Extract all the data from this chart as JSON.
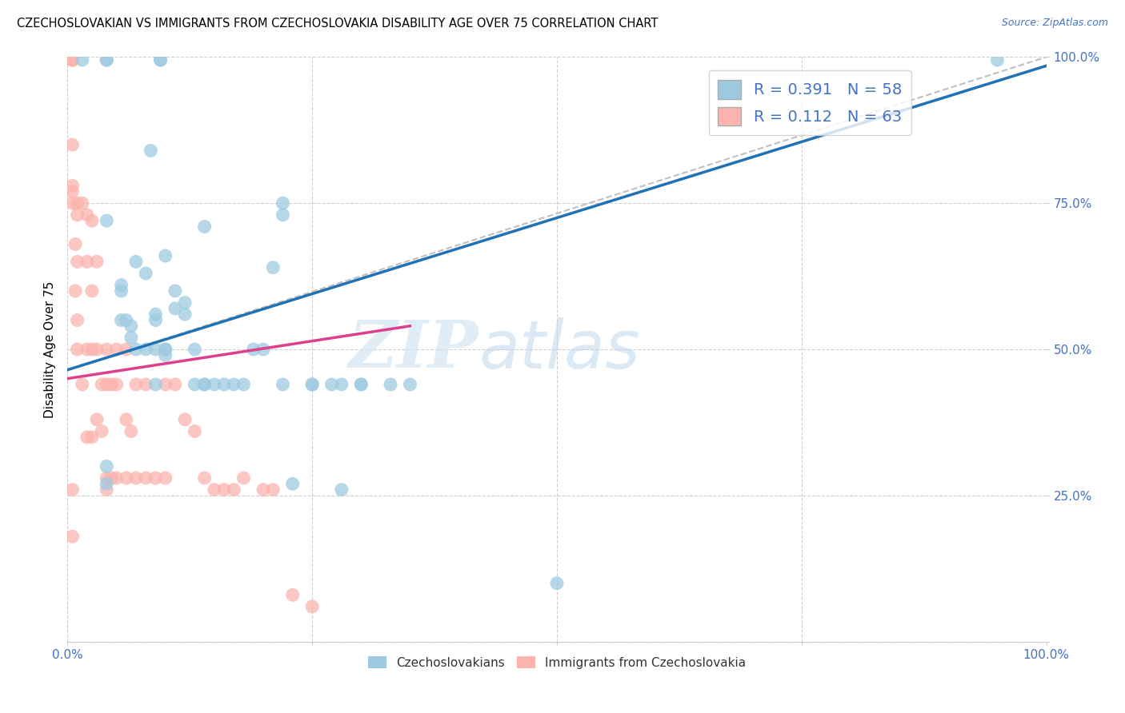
{
  "title": "CZECHOSLOVAKIAN VS IMMIGRANTS FROM CZECHOSLOVAKIA DISABILITY AGE OVER 75 CORRELATION CHART",
  "source": "Source: ZipAtlas.com",
  "ylabel": "Disability Age Over 75",
  "xlim": [
    0,
    1
  ],
  "ylim": [
    0,
    1
  ],
  "xticks": [
    0,
    0.25,
    0.5,
    0.75,
    1.0
  ],
  "yticks": [
    0,
    0.25,
    0.5,
    0.75,
    1.0
  ],
  "xticklabels": [
    "0.0%",
    "",
    "",
    "",
    "100.0%"
  ],
  "yticklabels": [
    "",
    "25.0%",
    "50.0%",
    "75.0%",
    "100.0%"
  ],
  "watermark_zip": "ZIP",
  "watermark_atlas": "atlas",
  "blue_R": 0.391,
  "blue_N": 58,
  "pink_R": 0.112,
  "pink_N": 63,
  "blue_color": "#9ecae1",
  "pink_color": "#fbb4ae",
  "blue_line_color": "#2171b5",
  "pink_line_color": "#de3f8e",
  "dashed_line_color": "#c0c0c0",
  "legend_label_blue": "Czechoslovakians",
  "legend_label_pink": "Immigrants from Czechoslovakia",
  "blue_line_x0": 0.0,
  "blue_line_y0": 0.465,
  "blue_line_x1": 1.0,
  "blue_line_y1": 0.985,
  "pink_line_x0": 0.0,
  "pink_line_y0": 0.45,
  "pink_line_x1": 0.35,
  "pink_line_y1": 0.54,
  "dash_line_x0": 0.0,
  "dash_line_y0": 0.465,
  "dash_line_x1": 1.0,
  "dash_line_y1": 1.0,
  "blue_scatter_x": [
    0.015,
    0.04,
    0.04,
    0.04,
    0.055,
    0.055,
    0.055,
    0.06,
    0.065,
    0.065,
    0.07,
    0.07,
    0.08,
    0.08,
    0.085,
    0.09,
    0.09,
    0.09,
    0.09,
    0.1,
    0.1,
    0.1,
    0.1,
    0.11,
    0.11,
    0.12,
    0.12,
    0.13,
    0.13,
    0.14,
    0.14,
    0.15,
    0.16,
    0.17,
    0.18,
    0.19,
    0.2,
    0.21,
    0.22,
    0.22,
    0.22,
    0.25,
    0.25,
    0.27,
    0.28,
    0.28,
    0.3,
    0.3,
    0.33,
    0.35,
    0.14,
    0.5,
    0.23,
    0.04,
    0.04,
    0.095,
    0.095,
    0.95
  ],
  "blue_scatter_y": [
    0.995,
    0.995,
    0.995,
    0.72,
    0.61,
    0.6,
    0.55,
    0.55,
    0.54,
    0.52,
    0.5,
    0.65,
    0.5,
    0.63,
    0.84,
    0.56,
    0.55,
    0.5,
    0.44,
    0.5,
    0.5,
    0.49,
    0.66,
    0.6,
    0.57,
    0.56,
    0.58,
    0.5,
    0.44,
    0.44,
    0.44,
    0.44,
    0.44,
    0.44,
    0.44,
    0.5,
    0.5,
    0.64,
    0.44,
    0.75,
    0.73,
    0.44,
    0.44,
    0.44,
    0.44,
    0.26,
    0.44,
    0.44,
    0.44,
    0.44,
    0.71,
    0.1,
    0.27,
    0.3,
    0.27,
    0.995,
    0.995,
    0.995
  ],
  "pink_scatter_x": [
    0.005,
    0.005,
    0.005,
    0.005,
    0.005,
    0.005,
    0.005,
    0.008,
    0.008,
    0.01,
    0.01,
    0.01,
    0.01,
    0.01,
    0.015,
    0.015,
    0.02,
    0.02,
    0.02,
    0.02,
    0.025,
    0.025,
    0.025,
    0.025,
    0.03,
    0.03,
    0.03,
    0.035,
    0.035,
    0.04,
    0.04,
    0.04,
    0.04,
    0.045,
    0.045,
    0.05,
    0.05,
    0.05,
    0.06,
    0.06,
    0.06,
    0.065,
    0.07,
    0.07,
    0.08,
    0.08,
    0.09,
    0.1,
    0.1,
    0.11,
    0.12,
    0.13,
    0.14,
    0.15,
    0.16,
    0.17,
    0.18,
    0.2,
    0.21,
    0.23,
    0.25,
    0.005,
    0.005
  ],
  "pink_scatter_y": [
    0.995,
    0.995,
    0.995,
    0.85,
    0.78,
    0.77,
    0.75,
    0.68,
    0.6,
    0.75,
    0.73,
    0.65,
    0.55,
    0.5,
    0.75,
    0.44,
    0.73,
    0.65,
    0.5,
    0.35,
    0.72,
    0.6,
    0.5,
    0.35,
    0.65,
    0.5,
    0.38,
    0.44,
    0.36,
    0.5,
    0.44,
    0.28,
    0.26,
    0.44,
    0.28,
    0.5,
    0.44,
    0.28,
    0.5,
    0.38,
    0.28,
    0.36,
    0.44,
    0.28,
    0.44,
    0.28,
    0.28,
    0.44,
    0.28,
    0.44,
    0.38,
    0.36,
    0.28,
    0.26,
    0.26,
    0.26,
    0.28,
    0.26,
    0.26,
    0.08,
    0.06,
    0.18,
    0.26
  ]
}
